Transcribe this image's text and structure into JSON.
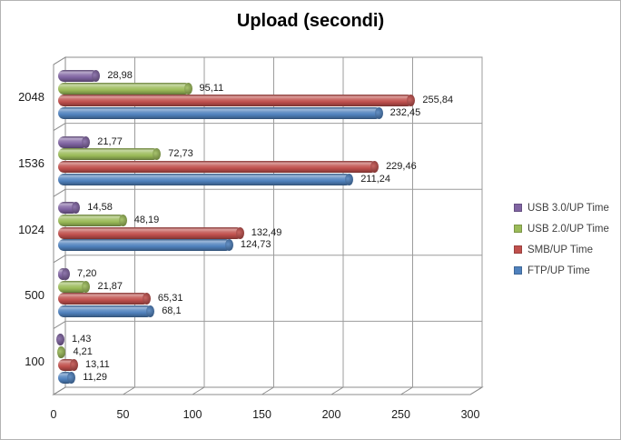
{
  "title": "Upload (secondi)",
  "chart_data": {
    "type": "bar",
    "orientation": "horizontal",
    "style": "3d-cylinder",
    "title": "Upload (secondi)",
    "categories": [
      "2048",
      "1536",
      "1024",
      "500",
      "100"
    ],
    "series": [
      {
        "name": "USB 3.0/UP Time",
        "color": "#8064A2",
        "values": [
          28.98,
          21.77,
          14.58,
          7.2,
          1.43
        ],
        "labels": [
          "28,98",
          "21,77",
          "14,58",
          "7,20",
          "1,43"
        ]
      },
      {
        "name": "USB 2.0/UP Time",
        "color": "#9BBB59",
        "values": [
          95.11,
          72.73,
          48.19,
          21.87,
          4.21
        ],
        "labels": [
          "95,11",
          "72,73",
          "48,19",
          "21,87",
          "4,21"
        ]
      },
      {
        "name": "SMB/UP Time",
        "color": "#C0504D",
        "values": [
          255.84,
          229.46,
          132.49,
          65.31,
          13.11
        ],
        "labels": [
          "255,84",
          "229,46",
          "132,49",
          "65,31",
          "13,11"
        ]
      },
      {
        "name": "FTP/UP Time",
        "color": "#4F81BD",
        "values": [
          232.45,
          211.24,
          124.73,
          68.1,
          11.29
        ],
        "labels": [
          "232,45",
          "211,24",
          "124,73",
          "68,1",
          "11,29"
        ]
      }
    ],
    "xlim": [
      0,
      300
    ],
    "xticks": [
      "0",
      "50",
      "100",
      "150",
      "200",
      "250",
      "300"
    ],
    "grid": true,
    "value_labels": true,
    "legend_position": "right"
  },
  "colors": {
    "frame": "#8c8c8c",
    "gridline": "#9c9c9c",
    "background": "#ffffff",
    "text": "#1a1a1a",
    "legend_text": "#3f3f3f",
    "window_border": "#b3b3b3"
  }
}
